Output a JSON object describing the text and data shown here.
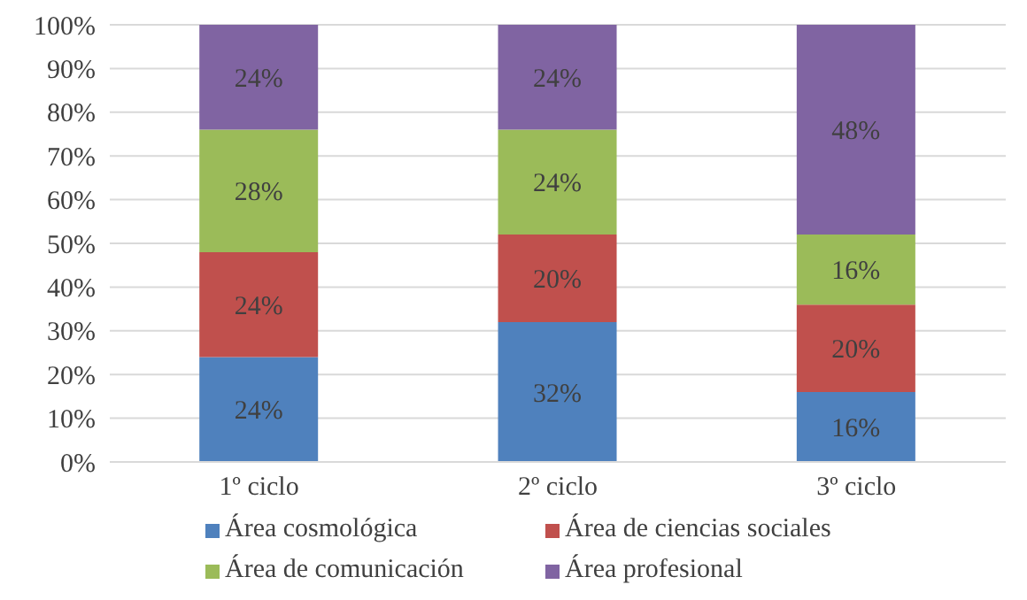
{
  "chart_data": {
    "type": "bar",
    "stacked": true,
    "categories": [
      "1º ciclo",
      "2º ciclo",
      "3º ciclo"
    ],
    "series": [
      {
        "name": "Área cosmológica",
        "color": "#4f81bd",
        "values": [
          24,
          32,
          16
        ],
        "value_labels": [
          "24%",
          "32%",
          "16%"
        ]
      },
      {
        "name": "Área de ciencias sociales",
        "color": "#c0504d",
        "values": [
          24,
          20,
          20
        ],
        "value_labels": [
          "24%",
          "20%",
          "20%"
        ]
      },
      {
        "name": "Área de comunicación",
        "color": "#9bbb59",
        "values": [
          28,
          24,
          16
        ],
        "value_labels": [
          "28%",
          "24%",
          "16%"
        ]
      },
      {
        "name": "Área profesional",
        "color": "#8064a2",
        "values": [
          24,
          24,
          48
        ],
        "value_labels": [
          "24%",
          "24%",
          "48%"
        ]
      }
    ],
    "ylim": [
      0,
      100
    ],
    "yticks": [
      {
        "value": 0,
        "label": "0%"
      },
      {
        "value": 10,
        "label": "10%"
      },
      {
        "value": 20,
        "label": "20%"
      },
      {
        "value": 30,
        "label": "30%"
      },
      {
        "value": 40,
        "label": "40%"
      },
      {
        "value": 50,
        "label": "50%"
      },
      {
        "value": 60,
        "label": "60%"
      },
      {
        "value": 70,
        "label": "70%"
      },
      {
        "value": 80,
        "label": "80%"
      },
      {
        "value": 90,
        "label": "90%"
      },
      {
        "value": 100,
        "label": "100%"
      }
    ],
    "grid": "y",
    "legend": "bottom"
  }
}
